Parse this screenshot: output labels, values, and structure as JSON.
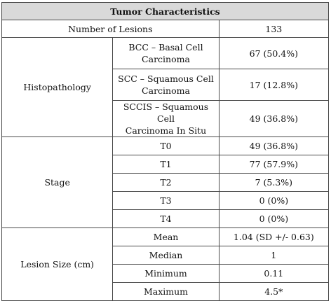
{
  "title": "Tumor Characteristics",
  "lesions": {
    "label": "Number of Lesions",
    "value": "133"
  },
  "histopathology": {
    "label": "Histopathology",
    "rows": [
      {
        "line1": "BCC – Basal Cell",
        "line2": "Carcinoma",
        "value": "67 (50.4%)"
      },
      {
        "line1": "SCC – Squamous Cell",
        "line2": "Carcinoma",
        "value": "17 (12.8%)"
      },
      {
        "line1": "SCCIS – Squamous Cell",
        "line2": "Carcinoma In Situ",
        "value": "49 (36.8%)"
      }
    ]
  },
  "stage": {
    "label": "Stage",
    "rows": [
      {
        "name": "T0",
        "value": "49 (36.8%)"
      },
      {
        "name": "T1",
        "value": "77 (57.9%)"
      },
      {
        "name": "T2",
        "value": "7 (5.3%)"
      },
      {
        "name": "T3",
        "value": "0 (0%)"
      },
      {
        "name": "T4",
        "value": "0 (0%)"
      }
    ]
  },
  "lesion_size": {
    "label": "Lesion Size (cm)",
    "rows": [
      {
        "name": "Mean",
        "value": "1.04 (SD +/- 0.63)"
      },
      {
        "name": "Median",
        "value": "1"
      },
      {
        "name": "Minimum",
        "value": "0.11"
      },
      {
        "name": "Maximum",
        "value": "4.5*"
      }
    ]
  }
}
